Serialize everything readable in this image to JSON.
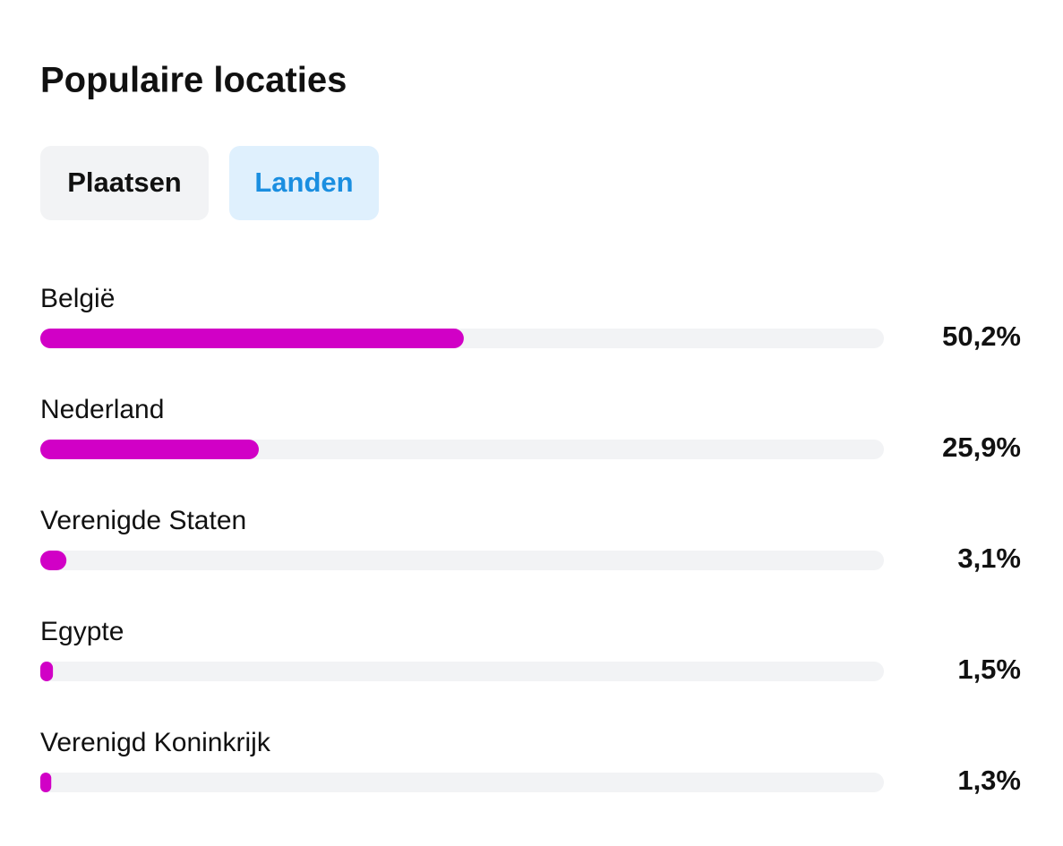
{
  "tabs": [
    {
      "label": "Plaatsen",
      "selected": false
    },
    {
      "label": "Landen",
      "selected": true
    }
  ],
  "chart_data": {
    "type": "bar",
    "title": "Populaire locaties",
    "categories": [
      "België",
      "Nederland",
      "Verenigde Staten",
      "Egypte",
      "Verenigd Koninkrijk"
    ],
    "values": [
      50.2,
      25.9,
      3.1,
      1.5,
      1.3
    ],
    "value_labels": [
      "50,2%",
      "25,9%",
      "3,1%",
      "1,5%",
      "1,3%"
    ],
    "color": "#d100c6",
    "xlim": [
      0,
      100
    ]
  }
}
